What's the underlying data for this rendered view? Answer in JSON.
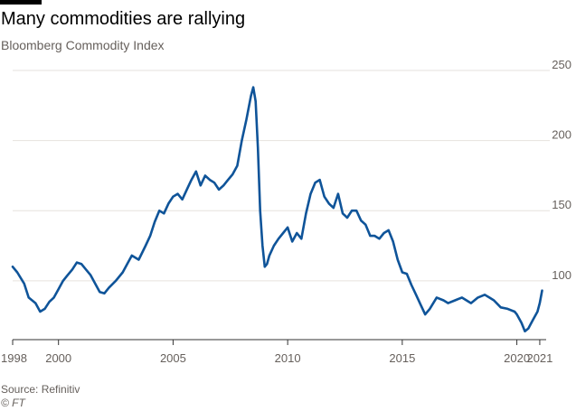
{
  "header": {
    "title": "Many commodities are rallying",
    "subtitle": "Bloomberg Commodity Index"
  },
  "footer": {
    "source": "Source: Refinitiv",
    "credit": "© FT"
  },
  "colors": {
    "line": "#0f5499",
    "grid": "#e6e2de",
    "axis": "#333333",
    "text": "#66605c"
  },
  "chart_data": {
    "type": "line",
    "title": "Many commodities are rallying",
    "subtitle": "Bloomberg Commodity Index",
    "xlabel": "",
    "ylabel": "",
    "xlim": [
      1998.0,
      2021.2
    ],
    "ylim": [
      58,
      250
    ],
    "y_axis_position": "right",
    "grid": "horizontal",
    "x_ticks": [
      {
        "value": 1998,
        "label": "1998"
      },
      {
        "value": 2000,
        "label": "2000"
      },
      {
        "value": 2005,
        "label": "2005"
      },
      {
        "value": 2010,
        "label": "2010"
      },
      {
        "value": 2015,
        "label": "2015"
      },
      {
        "value": 2020,
        "label": "2020"
      },
      {
        "value": 2021,
        "label": "2021"
      }
    ],
    "y_ticks": [
      {
        "value": 100,
        "label": "100"
      },
      {
        "value": 150,
        "label": "150"
      },
      {
        "value": 200,
        "label": "200"
      },
      {
        "value": 250,
        "label": "250"
      }
    ],
    "series": [
      {
        "x": [
          1998.0,
          1998.2,
          1998.5,
          1998.7,
          1999.0,
          1999.2,
          1999.4,
          1999.6,
          1999.8,
          2000.0,
          2000.2,
          2000.4,
          2000.6,
          2000.8,
          2001.0,
          2001.2,
          2001.4,
          2001.6,
          2001.8,
          2002.0,
          2002.2,
          2002.5,
          2002.8,
          2003.0,
          2003.2,
          2003.5,
          2003.8,
          2004.0,
          2004.2,
          2004.4,
          2004.6,
          2004.8,
          2005.0,
          2005.2,
          2005.4,
          2005.6,
          2005.8,
          2006.0,
          2006.2,
          2006.4,
          2006.6,
          2006.8,
          2007.0,
          2007.2,
          2007.4,
          2007.6,
          2007.8,
          2008.0,
          2008.2,
          2008.4,
          2008.5,
          2008.6,
          2008.7,
          2008.8,
          2008.9,
          2009.0,
          2009.1,
          2009.2,
          2009.4,
          2009.6,
          2009.8,
          2010.0,
          2010.2,
          2010.4,
          2010.6,
          2010.8,
          2011.0,
          2011.2,
          2011.4,
          2011.6,
          2011.8,
          2012.0,
          2012.2,
          2012.4,
          2012.6,
          2012.8,
          2013.0,
          2013.2,
          2013.4,
          2013.6,
          2013.8,
          2014.0,
          2014.2,
          2014.4,
          2014.6,
          2014.8,
          2015.0,
          2015.2,
          2015.4,
          2015.6,
          2015.8,
          2016.0,
          2016.2,
          2016.5,
          2016.8,
          2017.0,
          2017.3,
          2017.6,
          2018.0,
          2018.3,
          2018.6,
          2018.8,
          2019.0,
          2019.3,
          2019.6,
          2019.9,
          2020.0,
          2020.2,
          2020.35,
          2020.5,
          2020.7,
          2020.9,
          2021.0,
          2021.1
        ],
        "values": [
          110,
          106,
          98,
          88,
          84,
          78,
          80,
          85,
          88,
          94,
          100,
          104,
          108,
          113,
          112,
          108,
          104,
          98,
          92,
          91,
          95,
          100,
          106,
          112,
          118,
          115,
          125,
          132,
          142,
          150,
          148,
          155,
          160,
          162,
          158,
          165,
          172,
          178,
          168,
          175,
          172,
          170,
          165,
          168,
          172,
          176,
          182,
          200,
          215,
          232,
          238,
          228,
          195,
          150,
          125,
          110,
          112,
          118,
          125,
          130,
          134,
          138,
          128,
          134,
          130,
          148,
          162,
          170,
          172,
          160,
          155,
          152,
          162,
          148,
          145,
          150,
          150,
          143,
          140,
          132,
          132,
          130,
          134,
          136,
          128,
          115,
          106,
          105,
          97,
          90,
          83,
          76,
          80,
          88,
          86,
          84,
          86,
          88,
          84,
          88,
          90,
          88,
          86,
          81,
          80,
          78,
          76,
          70,
          64,
          66,
          72,
          78,
          84,
          93
        ]
      }
    ]
  }
}
